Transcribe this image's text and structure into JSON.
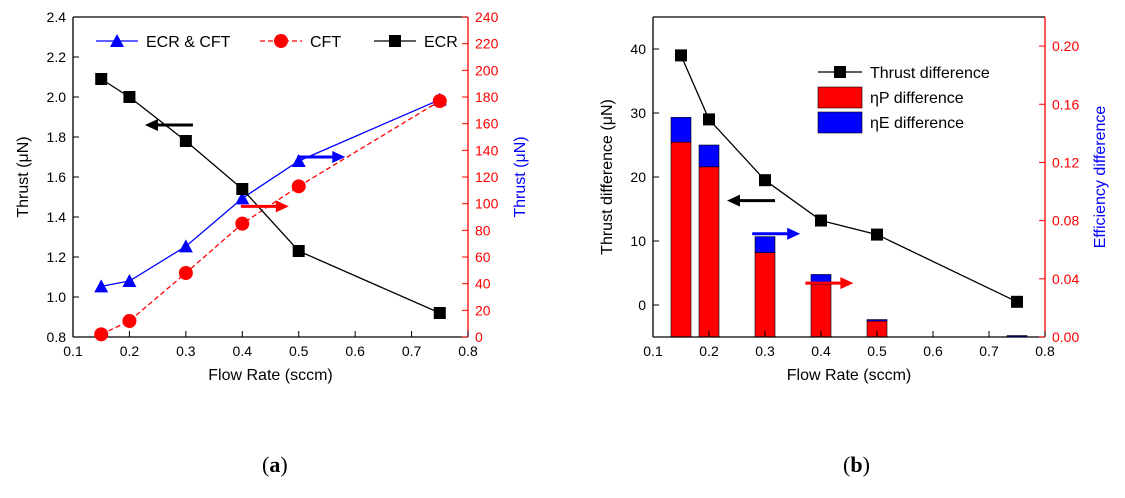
{
  "chart_data": [
    {
      "id": "a",
      "type": "line",
      "caption_letter": "a",
      "xlabel": "Flow Rate (sccm)",
      "ylabel_left": "Thrust (μN)",
      "ylabel_right": "Thrust (μN)",
      "xlim": [
        0.1,
        0.8
      ],
      "ylim_left": [
        0.8,
        2.4
      ],
      "ylim_right": [
        0,
        240
      ],
      "xticks": [
        "0.1",
        "0.2",
        "0.3",
        "0.4",
        "0.5",
        "0.6",
        "0.7",
        "0.8"
      ],
      "yticks_left": [
        "0.8",
        "1.0",
        "1.2",
        "1.4",
        "1.6",
        "1.8",
        "2.0",
        "2.2",
        "2.4"
      ],
      "yticks_right": [
        "0",
        "20",
        "40",
        "60",
        "80",
        "100",
        "120",
        "140",
        "160",
        "180",
        "200",
        "220",
        "240"
      ],
      "colors": {
        "left_axis": "#000000",
        "right_axis": "#ff0000",
        "right_label": "#0000ff"
      },
      "series": [
        {
          "name": "ECR & CFT",
          "axis": "right",
          "marker": "triangle",
          "color": "#0000ff",
          "dashed": false,
          "x": [
            0.15,
            0.2,
            0.3,
            0.4,
            0.5,
            0.75
          ],
          "values": [
            38,
            42,
            68,
            104,
            132,
            178
          ]
        },
        {
          "name": "CFT",
          "axis": "right",
          "marker": "circle",
          "color": "#ff0000",
          "dashed": true,
          "x": [
            0.15,
            0.2,
            0.3,
            0.4,
            0.5,
            0.75
          ],
          "values": [
            2,
            12,
            48,
            85,
            113,
            177
          ]
        },
        {
          "name": "ECR",
          "axis": "left",
          "marker": "square",
          "color": "#000000",
          "dashed": false,
          "x": [
            0.15,
            0.2,
            0.3,
            0.4,
            0.5,
            0.75
          ],
          "values": [
            2.09,
            2.0,
            1.78,
            1.54,
            1.23,
            0.92
          ]
        }
      ],
      "legend": [
        "ECR & CFT",
        "CFT",
        "ECR"
      ],
      "annotations": [
        {
          "kind": "arrow",
          "direction": "left",
          "color": "#000000",
          "x": 0.27,
          "y_left": 1.86,
          "axis": "left"
        },
        {
          "kind": "arrow",
          "direction": "right",
          "color": "#ff0000",
          "x": 0.44,
          "y_right": 98,
          "axis": "right"
        },
        {
          "kind": "arrow",
          "direction": "right",
          "color": "#0000ff",
          "x": 0.54,
          "y_right": 135,
          "axis": "right"
        }
      ]
    },
    {
      "id": "b",
      "type": "bar",
      "caption_letter": "b",
      "xlabel": "Flow Rate (sccm)",
      "ylabel_left": "Thrust difference (μN)",
      "ylabel_right": "Efficiency difference",
      "xlim": [
        0.1,
        0.8
      ],
      "ylim_left": [
        -5,
        45
      ],
      "ylim_right": [
        0,
        0.22
      ],
      "xticks": [
        "0.1",
        "0.2",
        "0.3",
        "0.4",
        "0.5",
        "0.6",
        "0.7",
        "0.8"
      ],
      "yticks_left": [
        "0",
        "10",
        "20",
        "30",
        "40"
      ],
      "yticks_right": [
        "0.00",
        "0.04",
        "0.08",
        "0.12",
        "0.16",
        "0.20"
      ],
      "colors": {
        "left_axis": "#000000",
        "right_axis": "#ff0000",
        "right_label": "#0000ff"
      },
      "x": [
        0.15,
        0.2,
        0.3,
        0.4,
        0.5,
        0.75
      ],
      "series": [
        {
          "name": "Thrust difference",
          "type": "line",
          "axis": "left",
          "marker": "square",
          "color": "#000000",
          "values": [
            39,
            29,
            19.5,
            13.2,
            11,
            0.5
          ]
        },
        {
          "name": "ηP difference",
          "type": "bar",
          "axis": "right",
          "color": "#ff0000",
          "values": [
            0.134,
            0.117,
            0.058,
            0.036,
            0.011,
            0.0
          ]
        },
        {
          "name": "ηE difference",
          "type": "bar",
          "axis": "right",
          "color": "#0000ff",
          "values": [
            0.017,
            0.015,
            0.011,
            0.007,
            0.001,
            0.001
          ]
        }
      ],
      "legend": [
        "Thrust difference",
        "ηP difference",
        "ηE difference"
      ],
      "annotations": [
        {
          "kind": "arrow",
          "direction": "left",
          "color": "#000000",
          "x": 0.275,
          "y_left": 16.3,
          "axis": "left"
        },
        {
          "kind": "arrow",
          "direction": "right",
          "color": "#0000ff",
          "x": 0.32,
          "y_right": 0.071,
          "axis": "right"
        },
        {
          "kind": "arrow",
          "direction": "right",
          "color": "#ff0000",
          "x": 0.415,
          "y_right": 0.037,
          "axis": "right"
        }
      ]
    }
  ]
}
